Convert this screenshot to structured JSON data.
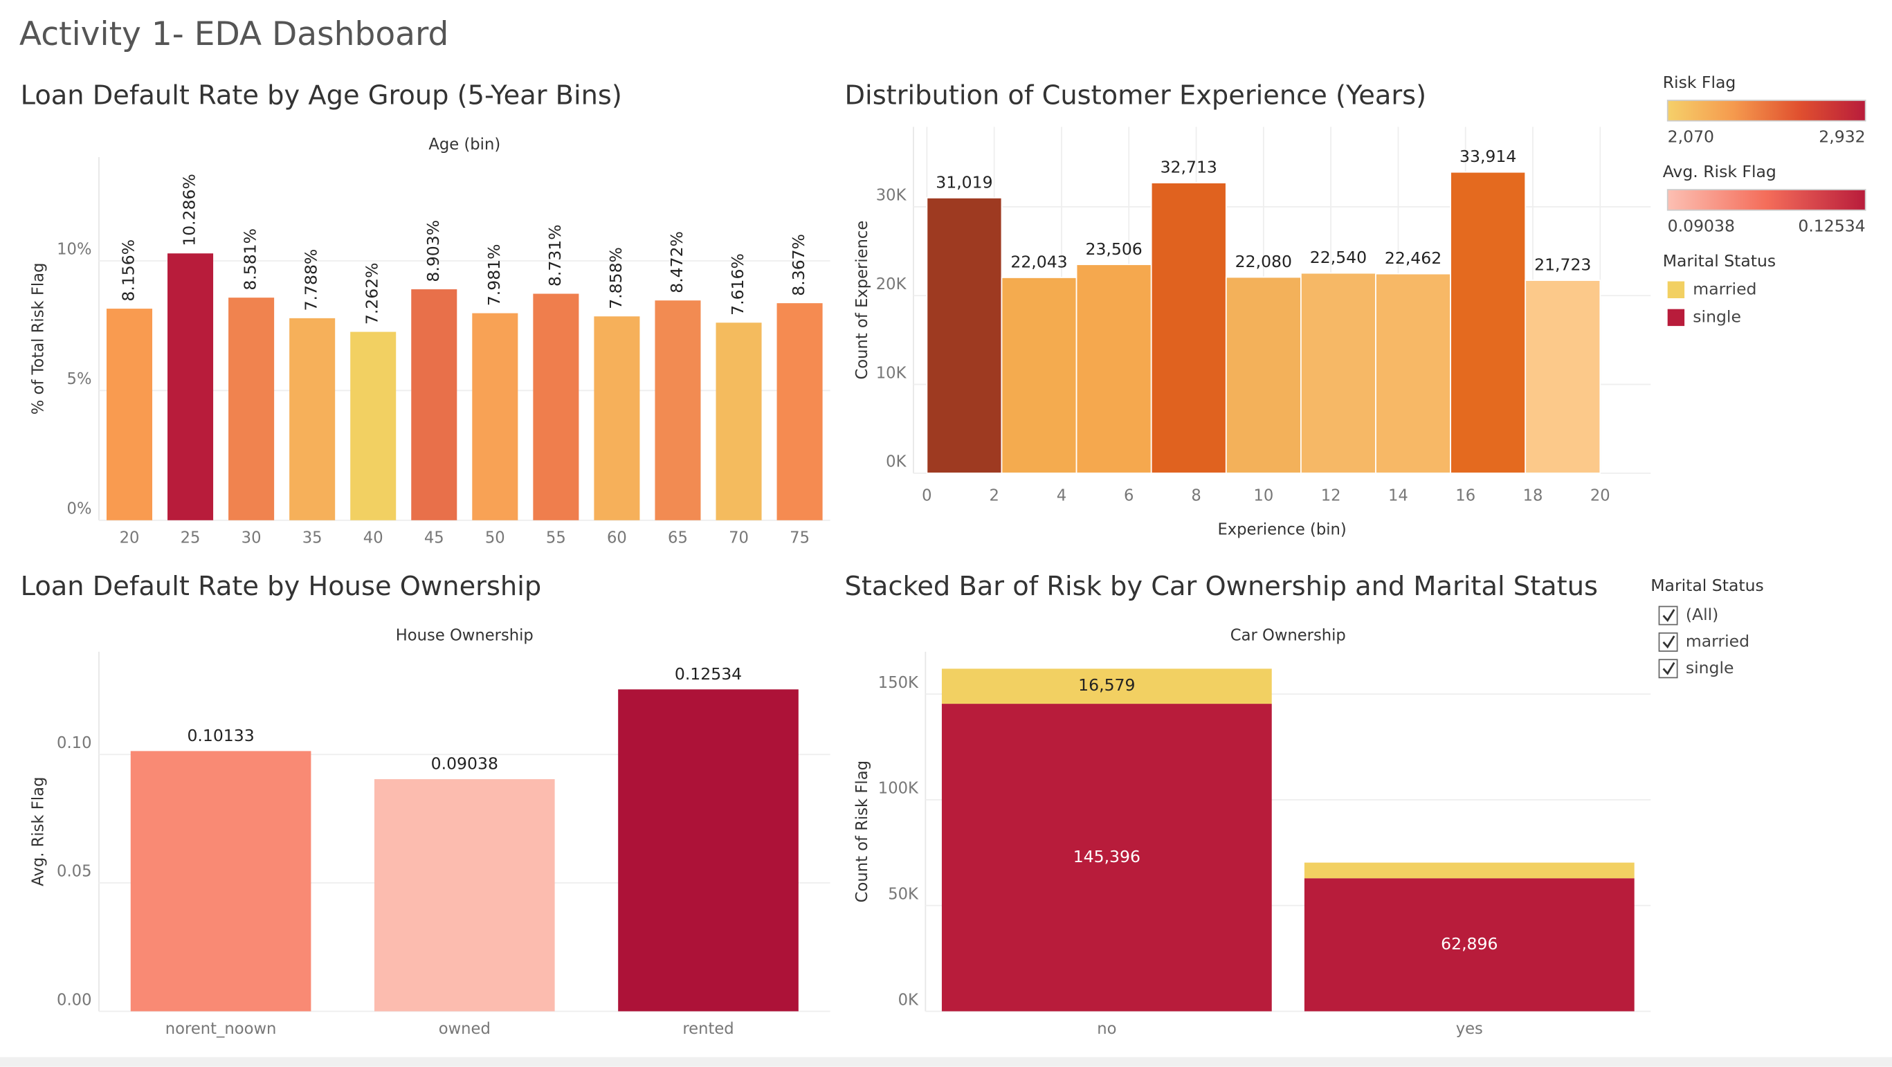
{
  "title": "Activity 1- EDA Dashboard",
  "chart_data": [
    {
      "type": "bar",
      "title": "Loan Default Rate by Age Group (5-Year Bins)",
      "x_label": "Age (bin)",
      "y_label": "% of Total Risk Flag",
      "categories": [
        "20",
        "25",
        "30",
        "35",
        "40",
        "45",
        "50",
        "55",
        "60",
        "65",
        "70",
        "75"
      ],
      "values": [
        8.156,
        10.286,
        8.581,
        7.788,
        7.262,
        8.903,
        7.981,
        8.731,
        7.858,
        8.472,
        7.616,
        8.367
      ],
      "value_labels": [
        "8.156%",
        "10.286%",
        "8.581%",
        "7.788%",
        "7.262%",
        "8.903%",
        "7.981%",
        "8.731%",
        "7.858%",
        "8.472%",
        "7.616%",
        "8.367%"
      ],
      "colors": [
        "#f99b50",
        "#b81c3b",
        "#f0834f",
        "#f6b05a",
        "#f2d062",
        "#e8704a",
        "#f8a255",
        "#ef7e4d",
        "#f6b05a",
        "#f28b52",
        "#f4bb5e",
        "#f58b51"
      ],
      "ylim": [
        0,
        14
      ],
      "yticks": [
        {
          "value": 0,
          "label": "0%"
        },
        {
          "value": 5,
          "label": "5%"
        },
        {
          "value": 10,
          "label": "10%"
        }
      ],
      "grid": true
    },
    {
      "type": "histogram",
      "title": "Distribution of Customer Experience (Years)",
      "x_label": "Experience (bin)",
      "y_label": "Count of Experience",
      "bins": [
        0,
        2.222,
        4.444,
        6.667,
        8.889,
        11.111,
        13.333,
        15.556,
        17.778,
        20
      ],
      "values": [
        31019,
        22043,
        23506,
        32713,
        22080,
        22540,
        22462,
        33914,
        21723
      ],
      "value_labels": [
        "31,019",
        "22,043",
        "23,506",
        "32,713",
        "22,080",
        "22,540",
        "22,462",
        "33,914",
        "21,723"
      ],
      "colors": [
        "#9e3a21",
        "#f4ab4f",
        "#f5a84e",
        "#e0621f",
        "#f3b15a",
        "#f6b866",
        "#f7b866",
        "#e46a1f",
        "#fcc98a"
      ],
      "xlim": [
        -0.4,
        21.5
      ],
      "xticks": [
        0,
        2,
        4,
        6,
        8,
        10,
        12,
        14,
        16,
        18,
        20
      ],
      "ylim": [
        0,
        39000
      ],
      "yticks": [
        {
          "value": 0,
          "label": "0K"
        },
        {
          "value": 10000,
          "label": "10K"
        },
        {
          "value": 20000,
          "label": "20K"
        },
        {
          "value": 30000,
          "label": "30K"
        }
      ],
      "grid": true
    },
    {
      "type": "bar",
      "title": "Loan Default Rate by House Ownership",
      "x_label": "House Ownership",
      "y_label": "Avg. Risk Flag",
      "categories": [
        "norent_noown",
        "owned",
        "rented"
      ],
      "values": [
        0.10133,
        0.09038,
        0.12534
      ],
      "colors": [
        "#f98a74",
        "#fcbcaf",
        "#ad1238"
      ],
      "ylim": [
        0,
        0.14
      ],
      "yticks": [
        {
          "value": 0,
          "label": "0.00"
        },
        {
          "value": 0.05,
          "label": "0.05"
        },
        {
          "value": 0.1,
          "label": "0.10"
        }
      ],
      "grid": true
    },
    {
      "type": "stacked_bar",
      "title": "Stacked Bar of Risk by Car Ownership and Marital Status",
      "x_label": "Car Ownership",
      "y_label": "Count of Risk Flag",
      "categories": [
        "no",
        "yes"
      ],
      "series": [
        {
          "name": "single",
          "color": "#b81c3b",
          "values": [
            145396,
            62896
          ],
          "value_labels": [
            "145,396",
            "62,896"
          ]
        },
        {
          "name": "married",
          "color": "#f2d062",
          "values": [
            16579,
            7400
          ],
          "value_labels": [
            "16,579",
            null
          ]
        }
      ],
      "ylim": [
        0,
        170000
      ],
      "yticks": [
        {
          "value": 0,
          "label": "0K"
        },
        {
          "value": 50000,
          "label": "50K"
        },
        {
          "value": 100000,
          "label": "100K"
        },
        {
          "value": 150000,
          "label": "150K"
        }
      ],
      "grid": true
    }
  ],
  "legends": {
    "risk_flag": {
      "title": "Risk Flag",
      "min": "2,070",
      "max": "2,932",
      "colors": [
        "#f5d06a",
        "#f59a4e",
        "#e0502f",
        "#b81c3b"
      ]
    },
    "avg_risk_flag": {
      "title": "Avg. Risk Flag",
      "min": "0.09038",
      "max": "0.12534",
      "colors": [
        "#fcc0b3",
        "#f46d5a",
        "#b81c3b"
      ]
    },
    "marital_status": {
      "title": "Marital Status",
      "items": [
        {
          "label": "married",
          "color": "#f2d062"
        },
        {
          "label": "single",
          "color": "#b81c3b"
        }
      ]
    }
  },
  "filter": {
    "title": "Marital Status",
    "options": [
      "(All)",
      "married",
      "single"
    ]
  }
}
